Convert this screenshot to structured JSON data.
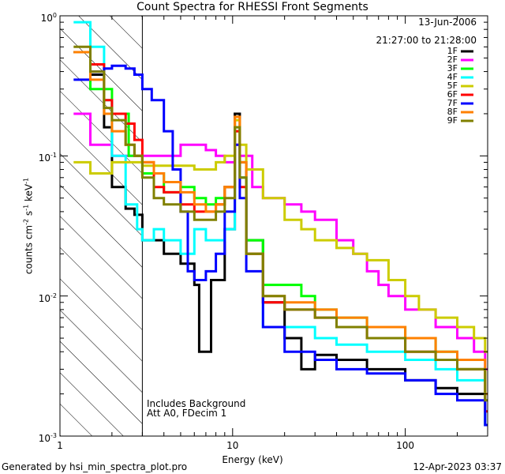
{
  "chart_data": {
    "type": "line",
    "title": "Count Spectra for RHESSI Front Segments",
    "xlabel": "Energy (keV)",
    "ylabel_main": "counts cm",
    "ylabel_exp1": "-2",
    "ylabel_mid": " s",
    "ylabel_exp2": "-1",
    "ylabel_unit": " keV",
    "ylabel_exp3": "-1",
    "xscale": "log",
    "yscale": "log",
    "xlim": [
      1,
      300
    ],
    "ylim": [
      0.001,
      1
    ],
    "xticks": [
      {
        "value": 1,
        "label": "1"
      },
      {
        "value": 10,
        "label": "10"
      },
      {
        "value": 100,
        "label": "100"
      }
    ],
    "yticks": [
      {
        "value": 0.001,
        "base": "10",
        "exp": "-3"
      },
      {
        "value": 0.01,
        "base": "10",
        "exp": "-2"
      },
      {
        "value": 0.1,
        "base": "10",
        "exp": "-1"
      },
      {
        "value": 1,
        "base": "10",
        "exp": "0"
      }
    ],
    "date": "13-Jun-2006",
    "time_range": "21:27:00 to 21:28:00",
    "annotation_line1": "Includes Background",
    "annotation_line2": "Att A0, FDecim 1",
    "attenuator_threshold_kev": 3,
    "legend_position": "top-right",
    "series": [
      {
        "name": "1F",
        "color": "#000000",
        "points": [
          [
            1.2,
            0.55
          ],
          [
            1.5,
            0.38
          ],
          [
            1.8,
            0.16
          ],
          [
            2.0,
            0.06
          ],
          [
            2.4,
            0.042
          ],
          [
            2.7,
            0.038
          ],
          [
            3.0,
            0.025
          ],
          [
            4.0,
            0.02
          ],
          [
            5.0,
            0.017
          ],
          [
            6.0,
            0.012
          ],
          [
            6.4,
            0.004
          ],
          [
            7.5,
            0.013
          ],
          [
            9.0,
            0.03
          ],
          [
            10.3,
            0.2
          ],
          [
            11.0,
            0.09
          ],
          [
            12.0,
            0.025
          ],
          [
            15,
            0.009
          ],
          [
            20,
            0.005
          ],
          [
            25,
            0.003
          ],
          [
            30,
            0.0038
          ],
          [
            40,
            0.0035
          ],
          [
            60,
            0.003
          ],
          [
            100,
            0.0025
          ],
          [
            150,
            0.0022
          ],
          [
            200,
            0.002
          ],
          [
            290,
            0.0012
          ]
        ]
      },
      {
        "name": "2F",
        "color": "#ff00ff",
        "points": [
          [
            1.2,
            0.2
          ],
          [
            1.5,
            0.12
          ],
          [
            2.0,
            0.1
          ],
          [
            2.5,
            0.1
          ],
          [
            3.0,
            0.1
          ],
          [
            4.0,
            0.1
          ],
          [
            5.0,
            0.12
          ],
          [
            6.0,
            0.12
          ],
          [
            7.0,
            0.11
          ],
          [
            8.0,
            0.1
          ],
          [
            9.0,
            0.09
          ],
          [
            10.3,
            0.12
          ],
          [
            11.0,
            0.1
          ],
          [
            13,
            0.06
          ],
          [
            15,
            0.05
          ],
          [
            20,
            0.045
          ],
          [
            25,
            0.04
          ],
          [
            30,
            0.035
          ],
          [
            40,
            0.025
          ],
          [
            50,
            0.02
          ],
          [
            60,
            0.015
          ],
          [
            70,
            0.012
          ],
          [
            80,
            0.01
          ],
          [
            100,
            0.008
          ],
          [
            150,
            0.006
          ],
          [
            200,
            0.005
          ],
          [
            250,
            0.004
          ],
          [
            290,
            0.003
          ]
        ]
      },
      {
        "name": "3F",
        "color": "#00ff00",
        "points": [
          [
            1.2,
            0.55
          ],
          [
            1.5,
            0.3
          ],
          [
            2.0,
            0.2
          ],
          [
            2.5,
            0.1
          ],
          [
            3.0,
            0.075
          ],
          [
            4.0,
            0.055
          ],
          [
            5.0,
            0.06
          ],
          [
            6.0,
            0.05
          ],
          [
            7.0,
            0.045
          ],
          [
            8.0,
            0.05
          ],
          [
            9.0,
            0.06
          ],
          [
            10.3,
            0.15
          ],
          [
            11.0,
            0.07
          ],
          [
            12.0,
            0.025
          ],
          [
            15,
            0.012
          ],
          [
            20,
            0.012
          ],
          [
            25,
            0.01
          ],
          [
            30,
            0.008
          ],
          [
            40,
            0.007
          ],
          [
            60,
            0.006
          ],
          [
            100,
            0.005
          ],
          [
            150,
            0.004
          ],
          [
            200,
            0.003
          ],
          [
            290,
            0.002
          ]
        ]
      },
      {
        "name": "4F",
        "color": "#00ffff",
        "points": [
          [
            1.2,
            0.9
          ],
          [
            1.5,
            0.6
          ],
          [
            1.8,
            0.25
          ],
          [
            2.0,
            0.1
          ],
          [
            2.4,
            0.045
          ],
          [
            2.8,
            0.03
          ],
          [
            3.0,
            0.025
          ],
          [
            3.5,
            0.03
          ],
          [
            4.0,
            0.025
          ],
          [
            5.0,
            0.02
          ],
          [
            6.0,
            0.03
          ],
          [
            7.0,
            0.025
          ],
          [
            8.0,
            0.025
          ],
          [
            9.0,
            0.03
          ],
          [
            10.3,
            0.16
          ],
          [
            11.0,
            0.07
          ],
          [
            12.0,
            0.02
          ],
          [
            15,
            0.006
          ],
          [
            20,
            0.006
          ],
          [
            30,
            0.005
          ],
          [
            40,
            0.0045
          ],
          [
            60,
            0.004
          ],
          [
            100,
            0.0035
          ],
          [
            150,
            0.003
          ],
          [
            200,
            0.0025
          ],
          [
            290,
            0.0012
          ]
        ]
      },
      {
        "name": "5F",
        "color": "#cccc00",
        "points": [
          [
            1.2,
            0.09
          ],
          [
            1.5,
            0.075
          ],
          [
            2.0,
            0.09
          ],
          [
            2.5,
            0.09
          ],
          [
            3.0,
            0.085
          ],
          [
            4.0,
            0.085
          ],
          [
            5.0,
            0.085
          ],
          [
            6.0,
            0.08
          ],
          [
            7.0,
            0.08
          ],
          [
            8.0,
            0.09
          ],
          [
            9.0,
            0.1
          ],
          [
            10.3,
            0.18
          ],
          [
            11.0,
            0.12
          ],
          [
            12.0,
            0.08
          ],
          [
            15,
            0.05
          ],
          [
            20,
            0.035
          ],
          [
            25,
            0.03
          ],
          [
            30,
            0.025
          ],
          [
            40,
            0.022
          ],
          [
            50,
            0.02
          ],
          [
            60,
            0.018
          ],
          [
            80,
            0.013
          ],
          [
            100,
            0.01
          ],
          [
            120,
            0.008
          ],
          [
            150,
            0.007
          ],
          [
            200,
            0.006
          ],
          [
            250,
            0.005
          ],
          [
            290,
            0.004
          ]
        ]
      },
      {
        "name": "6F",
        "color": "#ff0000",
        "points": [
          [
            1.2,
            0.55
          ],
          [
            1.5,
            0.45
          ],
          [
            1.8,
            0.25
          ],
          [
            2.0,
            0.2
          ],
          [
            2.4,
            0.17
          ],
          [
            2.7,
            0.13
          ],
          [
            3.0,
            0.09
          ],
          [
            3.5,
            0.06
          ],
          [
            4.0,
            0.055
          ],
          [
            5.0,
            0.045
          ],
          [
            6.0,
            0.04
          ],
          [
            7.0,
            0.04
          ],
          [
            8.0,
            0.045
          ],
          [
            9.0,
            0.06
          ],
          [
            10.3,
            0.15
          ],
          [
            11.0,
            0.06
          ],
          [
            12.0,
            0.02
          ],
          [
            15,
            0.009
          ],
          [
            20,
            0.008
          ],
          [
            30,
            0.007
          ],
          [
            40,
            0.006
          ],
          [
            60,
            0.005
          ],
          [
            100,
            0.004
          ],
          [
            150,
            0.0035
          ],
          [
            200,
            0.003
          ],
          [
            290,
            0.0015
          ]
        ]
      },
      {
        "name": "7F",
        "color": "#0000ff",
        "points": [
          [
            1.2,
            0.35
          ],
          [
            1.5,
            0.4
          ],
          [
            1.8,
            0.42
          ],
          [
            2.0,
            0.44
          ],
          [
            2.4,
            0.42
          ],
          [
            2.7,
            0.38
          ],
          [
            3.0,
            0.3
          ],
          [
            3.4,
            0.25
          ],
          [
            4.0,
            0.15
          ],
          [
            4.5,
            0.08
          ],
          [
            5.0,
            0.04
          ],
          [
            5.5,
            0.015
          ],
          [
            6.0,
            0.013
          ],
          [
            7.0,
            0.015
          ],
          [
            8.0,
            0.02
          ],
          [
            9.0,
            0.04
          ],
          [
            10.3,
            0.12
          ],
          [
            11.0,
            0.05
          ],
          [
            12.0,
            0.015
          ],
          [
            15,
            0.006
          ],
          [
            20,
            0.004
          ],
          [
            30,
            0.0035
          ],
          [
            40,
            0.003
          ],
          [
            60,
            0.0028
          ],
          [
            100,
            0.0025
          ],
          [
            150,
            0.002
          ],
          [
            200,
            0.0018
          ],
          [
            290,
            0.0012
          ]
        ]
      },
      {
        "name": "8F",
        "color": "#ff8000",
        "points": [
          [
            1.2,
            0.55
          ],
          [
            1.5,
            0.35
          ],
          [
            1.8,
            0.2
          ],
          [
            2.0,
            0.15
          ],
          [
            2.4,
            0.12
          ],
          [
            2.7,
            0.1
          ],
          [
            3.0,
            0.09
          ],
          [
            3.5,
            0.075
          ],
          [
            4.0,
            0.065
          ],
          [
            5.0,
            0.055
          ],
          [
            6.0,
            0.045
          ],
          [
            7.0,
            0.04
          ],
          [
            8.0,
            0.045
          ],
          [
            9.0,
            0.06
          ],
          [
            10.3,
            0.19
          ],
          [
            11.0,
            0.09
          ],
          [
            12.0,
            0.02
          ],
          [
            15,
            0.01
          ],
          [
            20,
            0.009
          ],
          [
            30,
            0.008
          ],
          [
            40,
            0.007
          ],
          [
            60,
            0.006
          ],
          [
            100,
            0.005
          ],
          [
            150,
            0.004
          ],
          [
            200,
            0.0035
          ],
          [
            290,
            0.002
          ]
        ]
      },
      {
        "name": "9F",
        "color": "#808000",
        "points": [
          [
            1.2,
            0.6
          ],
          [
            1.5,
            0.4
          ],
          [
            1.8,
            0.22
          ],
          [
            2.0,
            0.18
          ],
          [
            2.4,
            0.12
          ],
          [
            2.7,
            0.1
          ],
          [
            3.0,
            0.07
          ],
          [
            3.5,
            0.05
          ],
          [
            4.0,
            0.045
          ],
          [
            5.0,
            0.04
          ],
          [
            6.0,
            0.035
          ],
          [
            7.0,
            0.035
          ],
          [
            8.0,
            0.04
          ],
          [
            9.0,
            0.05
          ],
          [
            10.3,
            0.16
          ],
          [
            11.0,
            0.07
          ],
          [
            12.0,
            0.02
          ],
          [
            15,
            0.01
          ],
          [
            20,
            0.008
          ],
          [
            30,
            0.007
          ],
          [
            40,
            0.006
          ],
          [
            60,
            0.005
          ],
          [
            100,
            0.004
          ],
          [
            150,
            0.0035
          ],
          [
            200,
            0.003
          ],
          [
            290,
            0.0018
          ]
        ]
      }
    ]
  },
  "footer": {
    "generated_by": "Generated by hsi_min_spectra_plot.pro",
    "timestamp": "12-Apr-2023 03:37"
  }
}
